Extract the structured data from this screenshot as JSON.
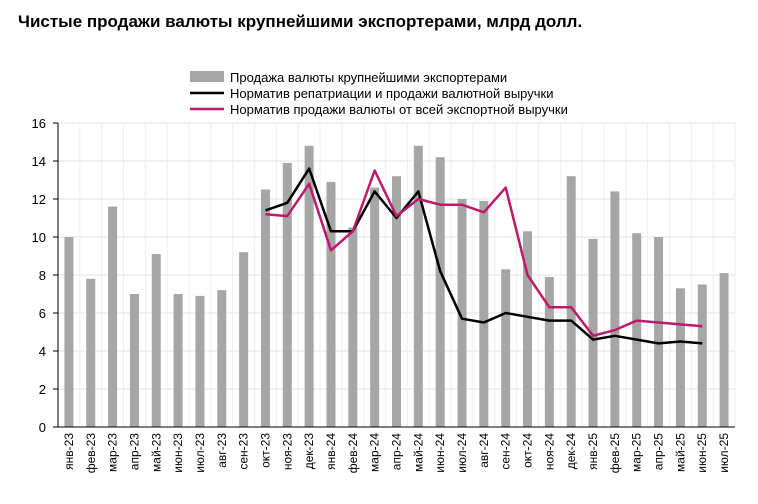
{
  "chart_data": {
    "type": "bar",
    "title": "Чистые продажи валюты крупнейшими экспортерами, млрд долл.",
    "categories": [
      "янв-23",
      "фев-23",
      "мар-23",
      "апр-23",
      "май-23",
      "июн-23",
      "июл-23",
      "авг-23",
      "сен-23",
      "окт-23",
      "ноя-23",
      "дек-23",
      "янв-24",
      "фев-24",
      "мар-24",
      "апр-24",
      "май-24",
      "июн-24",
      "июл-24",
      "авг-24",
      "сен-24",
      "окт-24",
      "ноя-24",
      "дек-24",
      "янв-25",
      "фев-25",
      "мар-25",
      "апр-25",
      "май-25",
      "июн-25",
      "июл-25"
    ],
    "ylim": [
      0,
      16
    ],
    "yticks": [
      0,
      2,
      4,
      6,
      8,
      10,
      12,
      14,
      16
    ],
    "grid": true,
    "legend_placement": "top",
    "series": [
      {
        "name": "Продажа валюты крупнейшими экспортерами",
        "kind": "bar",
        "color": "#a6a6a6",
        "values": [
          10.0,
          7.8,
          11.6,
          7.0,
          9.1,
          7.0,
          6.9,
          7.2,
          9.2,
          12.5,
          13.9,
          14.8,
          12.9,
          10.5,
          12.6,
          13.2,
          14.8,
          14.2,
          12.0,
          11.9,
          8.3,
          10.3,
          7.9,
          13.2,
          9.9,
          12.4,
          10.2,
          10.0,
          7.3,
          7.5,
          8.1
        ]
      },
      {
        "name": "Норматив репатриации и продажи валютной выручки",
        "kind": "line",
        "color": "#000000",
        "values": [
          null,
          null,
          null,
          null,
          null,
          null,
          null,
          null,
          null,
          11.4,
          11.8,
          13.6,
          10.3,
          10.3,
          12.4,
          11.0,
          12.4,
          8.2,
          5.7,
          5.5,
          6.0,
          5.8,
          5.6,
          5.6,
          4.6,
          4.8,
          4.6,
          4.4,
          4.5,
          4.4,
          null
        ]
      },
      {
        "name": "Норматив продажи валюты от всей экспортной выручки",
        "kind": "line",
        "color": "#c0186b",
        "values": [
          null,
          null,
          null,
          null,
          null,
          null,
          null,
          null,
          null,
          11.2,
          11.1,
          12.8,
          9.3,
          10.3,
          13.5,
          11.1,
          12.0,
          11.7,
          11.7,
          11.3,
          12.6,
          8.0,
          6.3,
          6.3,
          4.8,
          5.1,
          5.6,
          5.5,
          5.4,
          5.3,
          null
        ]
      }
    ]
  }
}
